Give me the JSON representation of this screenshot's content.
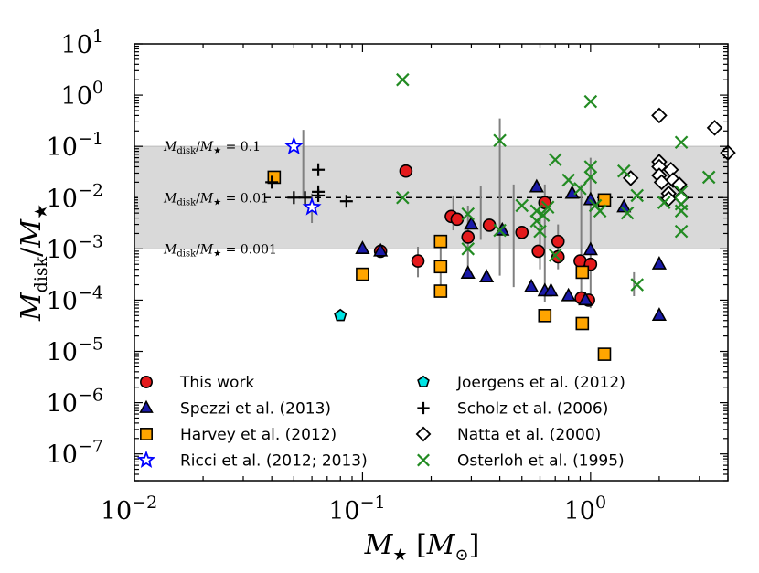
{
  "chart_data": {
    "type": "scatter",
    "x_scale": "log",
    "y_scale": "log",
    "xlim": [
      0.01,
      4
    ],
    "ylim": [
      3e-08,
      10
    ],
    "xlabel_html": "M<tspan font-size='20' dy='6'>★</tspan><tspan dy='-6'> [M</tspan><tspan font-size='20' dy='6'>⊙</tspan><tspan dy='-6'>]</tspan>",
    "xlabel": "M★ [M⊙]",
    "ylabel": "Mdisk/M★",
    "x_ticks": [
      {
        "value": 0.01,
        "base": "10",
        "exp": "−2"
      },
      {
        "value": 0.1,
        "base": "10",
        "exp": "−1"
      },
      {
        "value": 1,
        "base": "10",
        "exp": "0"
      }
    ],
    "y_ticks": [
      {
        "value": 1e-07,
        "base": "10",
        "exp": "−7"
      },
      {
        "value": 1e-06,
        "base": "10",
        "exp": "−6"
      },
      {
        "value": 1e-05,
        "base": "10",
        "exp": "−5"
      },
      {
        "value": 0.0001,
        "base": "10",
        "exp": "−4"
      },
      {
        "value": 0.001,
        "base": "10",
        "exp": "−3"
      },
      {
        "value": 0.01,
        "base": "10",
        "exp": "−2"
      },
      {
        "value": 0.1,
        "base": "10",
        "exp": "−1"
      },
      {
        "value": 1,
        "base": "10",
        "exp": "0"
      },
      {
        "value": 10,
        "base": "10",
        "exp": "1"
      }
    ],
    "shaded_band": [
      0.001,
      0.1
    ],
    "dashed_line": 0.01,
    "annotations": [
      {
        "text": "Mdisk/M★ = 0.1",
        "y": 0.1
      },
      {
        "text": "Mdisk/M★ = 0.01",
        "y": 0.01
      },
      {
        "text": "Mdisk/M★ = 0.001",
        "y": 0.001
      }
    ],
    "colors": {
      "this_work": "#e41a1c",
      "spezzi": "#1a1aa8",
      "harvey": "#ffa500",
      "ricci": "#0000ff",
      "joergens": "#00e5e5",
      "scholz": "#000000",
      "natta": "#ffffff",
      "osterloh": "#228b22",
      "band": "#d9d9d9",
      "errorbar": "#808080"
    },
    "errorbars": [
      {
        "x": 0.055,
        "lo": 0.011,
        "hi": 0.21
      },
      {
        "x": 0.06,
        "lo": 0.0032,
        "hi": 0.012
      },
      {
        "x": 0.175,
        "lo": 0.00028,
        "hi": 0.0011
      },
      {
        "x": 0.22,
        "lo": 0.00016,
        "hi": 0.0011
      },
      {
        "x": 0.25,
        "lo": 0.0023,
        "hi": 0.011
      },
      {
        "x": 0.29,
        "lo": 0.0003,
        "hi": 0.007
      },
      {
        "x": 0.33,
        "lo": 0.0015,
        "hi": 0.017
      },
      {
        "x": 0.4,
        "lo": 0.0003,
        "hi": 0.35
      },
      {
        "x": 0.46,
        "lo": 0.00018,
        "hi": 0.018
      },
      {
        "x": 0.6,
        "lo": 0.0004,
        "hi": 0.005
      },
      {
        "x": 0.63,
        "lo": 9e-05,
        "hi": 0.018
      },
      {
        "x": 0.72,
        "lo": 0.0004,
        "hi": 0.003
      },
      {
        "x": 0.91,
        "lo": 0.00012,
        "hi": 0.018
      },
      {
        "x": 1.0,
        "lo": 7e-05,
        "hi": 0.06
      },
      {
        "x": 1.55,
        "lo": 0.00012,
        "hi": 0.00035
      }
    ],
    "series": [
      {
        "name": "This work",
        "marker": "circle",
        "color_key": "this_work",
        "points": [
          [
            0.155,
            0.033
          ],
          [
            0.12,
            0.0009
          ],
          [
            0.175,
            0.00058
          ],
          [
            0.245,
            0.0043
          ],
          [
            0.26,
            0.0038
          ],
          [
            0.29,
            0.0017
          ],
          [
            0.36,
            0.0029
          ],
          [
            0.5,
            0.0021
          ],
          [
            0.59,
            0.0009
          ],
          [
            0.63,
            0.008
          ],
          [
            0.72,
            0.0014
          ],
          [
            0.72,
            0.0007
          ],
          [
            0.9,
            0.00058
          ],
          [
            0.91,
            0.00011
          ],
          [
            0.98,
            0.0001
          ],
          [
            1.0,
            0.0005
          ]
        ]
      },
      {
        "name": "Spezzi et al. (2013)",
        "marker": "triangle",
        "color_key": "spezzi",
        "points": [
          [
            0.1,
            0.001
          ],
          [
            0.12,
            0.0009
          ],
          [
            0.3,
            0.003
          ],
          [
            0.29,
            0.00033
          ],
          [
            0.35,
            0.00028
          ],
          [
            0.41,
            0.0023
          ],
          [
            0.55,
            0.00018
          ],
          [
            0.58,
            0.016
          ],
          [
            0.63,
            0.00015
          ],
          [
            0.67,
            0.00015
          ],
          [
            0.8,
            0.00012
          ],
          [
            0.83,
            0.012
          ],
          [
            0.95,
            0.0001
          ],
          [
            1.0,
            0.009
          ],
          [
            1.0,
            0.00095
          ],
          [
            1.4,
            0.0065
          ],
          [
            2.0,
            0.0005
          ],
          [
            2.0,
            5e-05
          ]
        ]
      },
      {
        "name": "Harvey et al. (2012)",
        "marker": "square",
        "color_key": "harvey",
        "points": [
          [
            0.041,
            0.025
          ],
          [
            0.1,
            0.00032
          ],
          [
            0.22,
            0.0014
          ],
          [
            0.22,
            0.00045
          ],
          [
            0.22,
            0.00015
          ],
          [
            0.63,
            5e-05
          ],
          [
            0.92,
            0.00035
          ],
          [
            0.92,
            3.5e-05
          ],
          [
            1.15,
            0.009
          ],
          [
            1.15,
            8.8e-06
          ]
        ]
      },
      {
        "name": "Ricci et al. (2012; 2013)",
        "marker": "star",
        "color_key": "ricci",
        "points": [
          [
            0.05,
            0.1
          ],
          [
            0.06,
            0.0065
          ]
        ]
      },
      {
        "name": "Joergens et al. (2012)",
        "marker": "pentagon",
        "color_key": "joergens",
        "points": [
          [
            0.08,
            5e-05
          ]
        ]
      },
      {
        "name": "Scholz et al. (2006)",
        "marker": "plus",
        "color_key": "scholz",
        "points": [
          [
            0.04,
            0.02
          ],
          [
            0.05,
            0.01
          ],
          [
            0.056,
            0.01
          ],
          [
            0.064,
            0.035
          ],
          [
            0.064,
            0.013
          ],
          [
            0.064,
            0.011
          ],
          [
            0.085,
            0.0085
          ]
        ]
      },
      {
        "name": "Natta et al. (2000)",
        "marker": "diamond",
        "color_key": "natta",
        "points": [
          [
            1.5,
            0.024
          ],
          [
            2.0,
            0.4
          ],
          [
            2.0,
            0.05
          ],
          [
            2.0,
            0.04
          ],
          [
            2.0,
            0.027
          ],
          [
            2.05,
            0.02
          ],
          [
            2.2,
            0.012
          ],
          [
            2.2,
            0.0095
          ],
          [
            2.25,
            0.035
          ],
          [
            2.3,
            0.022
          ],
          [
            2.45,
            0.018
          ],
          [
            2.5,
            0.01
          ],
          [
            3.5,
            0.23
          ],
          [
            4.0,
            0.075
          ]
        ]
      },
      {
        "name": "Osterloh et al. (1995)",
        "marker": "x",
        "color_key": "osterloh",
        "points": [
          [
            0.15,
            2.0
          ],
          [
            0.15,
            0.01
          ],
          [
            0.29,
            0.0048
          ],
          [
            0.29,
            0.001
          ],
          [
            0.4,
            0.13
          ],
          [
            0.4,
            0.0023
          ],
          [
            0.5,
            0.007
          ],
          [
            0.58,
            0.0055
          ],
          [
            0.58,
            0.0035
          ],
          [
            0.6,
            0.0022
          ],
          [
            0.62,
            0.0045
          ],
          [
            0.65,
            0.0065
          ],
          [
            0.7,
            0.055
          ],
          [
            0.7,
            0.00075
          ],
          [
            0.8,
            0.022
          ],
          [
            0.9,
            0.015
          ],
          [
            1.0,
            0.75
          ],
          [
            1.0,
            0.04
          ],
          [
            1.0,
            0.025
          ],
          [
            1.05,
            0.007
          ],
          [
            1.1,
            0.0055
          ],
          [
            1.45,
            0.005
          ],
          [
            1.6,
            0.011
          ],
          [
            1.6,
            0.0002
          ],
          [
            1.4,
            0.033
          ],
          [
            2.1,
            0.008
          ],
          [
            2.5,
            0.12
          ],
          [
            2.5,
            0.013
          ],
          [
            2.5,
            0.0075
          ],
          [
            2.5,
            0.0055
          ],
          [
            2.5,
            0.0022
          ],
          [
            3.3,
            0.025
          ]
        ]
      }
    ],
    "legend": {
      "placement": "lower-center",
      "columns": [
        [
          "This work",
          "Spezzi et al. (2013)",
          "Harvey et al. (2012)",
          "Ricci et al. (2012; 2013)"
        ],
        [
          "Joergens et al. (2012)",
          "Scholz et al. (2006)",
          "Natta et al. (2000)",
          "Osterloh et al. (1995)"
        ]
      ]
    }
  }
}
